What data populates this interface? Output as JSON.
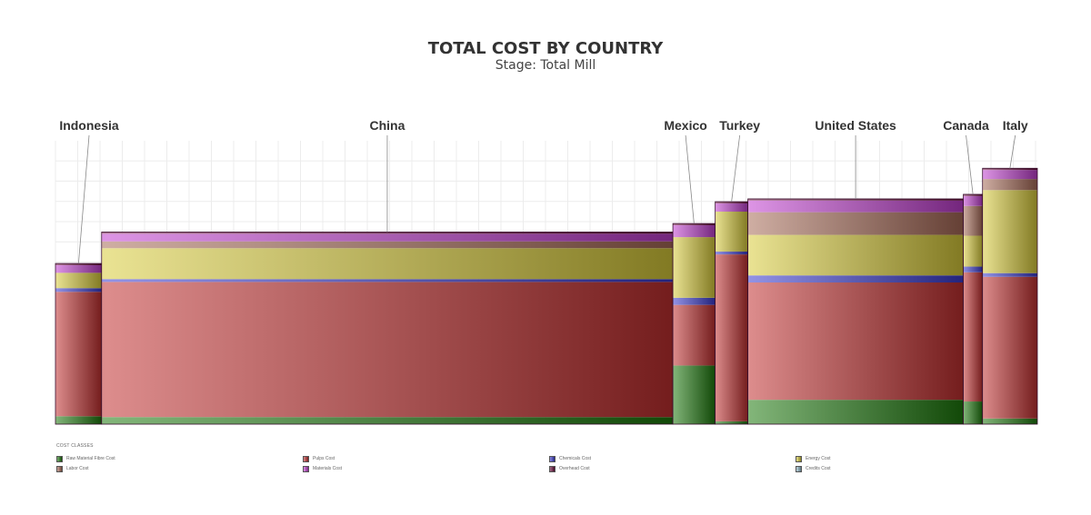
{
  "chart_data": {
    "type": "bar",
    "variant": "variable-width stacked (marimekko)",
    "title": "TOTAL COST BY COUNTRY",
    "subtitle": "Stage: Total Mill",
    "legend_title": "COST CLASSES",
    "legend_position": "bottom",
    "grid": true,
    "y_range": [
      0,
      100
    ],
    "categories": [
      "Indonesia",
      "China",
      "Mexico",
      "Turkey",
      "United States",
      "Canada",
      "Italy"
    ],
    "widths": [
      4.8,
      59.4,
      4.4,
      3.4,
      22.4,
      2.0,
      5.7
    ],
    "series": [
      {
        "name": "Raw Material Fibre Cost",
        "color": "#1e7a0e",
        "values": [
          2.8,
          2.5,
          20.7,
          1.0,
          8.6,
          8.0,
          2.0
        ]
      },
      {
        "name": "Pulps Cost",
        "color": "#c23030",
        "values": [
          43.9,
          47.7,
          21.4,
          58.9,
          41.4,
          45.6,
          50.0
        ]
      },
      {
        "name": "Chemicals Cost",
        "color": "#3b3bd0",
        "values": [
          1.3,
          1.0,
          2.5,
          1.0,
          2.5,
          2.0,
          1.3
        ]
      },
      {
        "name": "Energy Cost",
        "color": "#d8cc3a",
        "values": [
          5.4,
          10.9,
          21.4,
          14.1,
          14.3,
          10.9,
          29.3
        ]
      },
      {
        "name": "Labor Cost",
        "color": "#a86b58",
        "values": [
          0.0,
          2.4,
          0.0,
          0.0,
          8.0,
          10.5,
          3.9
        ]
      },
      {
        "name": "Materials Cost",
        "color": "#c23fd0",
        "values": [
          2.7,
          2.7,
          4.2,
          2.9,
          4.1,
          3.5,
          3.2
        ]
      },
      {
        "name": "Overhead Cost",
        "color": "#6a0a3a",
        "values": [
          0.6,
          0.6,
          0.6,
          0.6,
          0.6,
          0.6,
          0.6
        ]
      },
      {
        "name": "Credits Cost",
        "color": "#8fb8c8",
        "values": [
          0,
          0,
          0,
          0,
          0,
          0,
          0
        ]
      }
    ]
  }
}
